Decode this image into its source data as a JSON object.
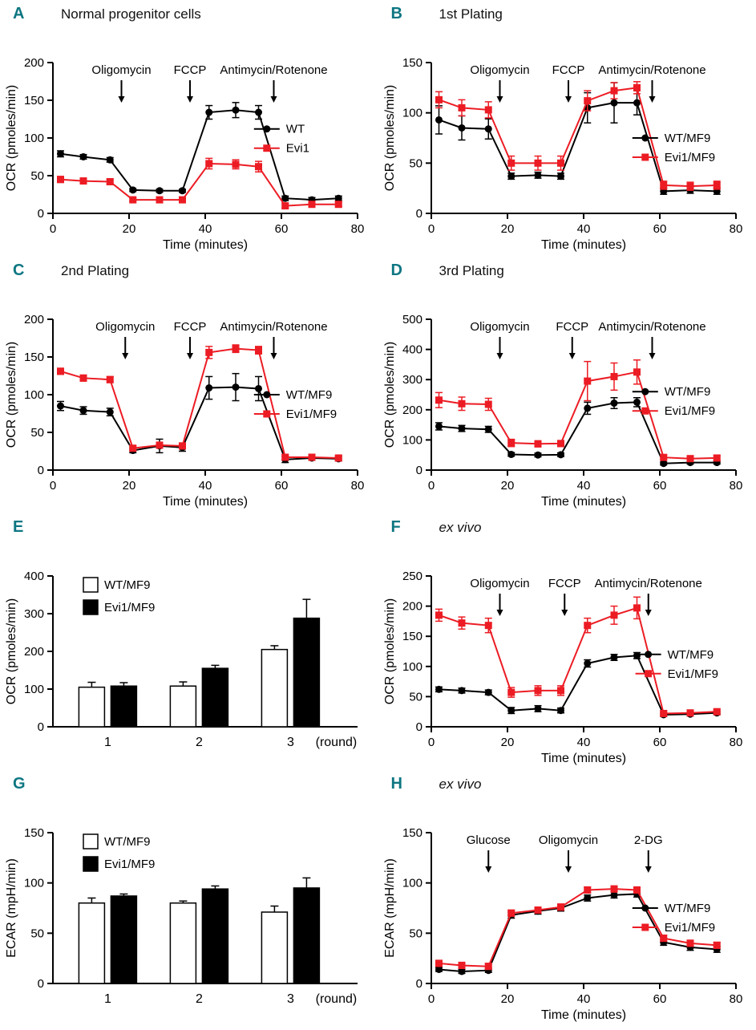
{
  "figure_meta": {
    "panel_letter_color": "#0d7682",
    "series_black_color": "#000000",
    "series_red_color": "#ec1c24"
  },
  "chart_data": [
    {
      "type": "line",
      "panel": "A",
      "title": "Normal progenitor cells",
      "title_class": "title",
      "xlabel": "Time (minutes)",
      "ylabel": "OCR (pmoles/min)",
      "xlim": [
        0,
        80
      ],
      "ylim": [
        0,
        200
      ],
      "xticks": [
        0,
        20,
        40,
        60,
        80
      ],
      "yticks": [
        0,
        50,
        100,
        150,
        200
      ],
      "annotations": [
        {
          "label": "Oligomycin",
          "x": 18
        },
        {
          "label": "FCCP",
          "x": 36
        },
        {
          "label": "Antimycin/Rotenone",
          "x": 58
        }
      ],
      "x": [
        2,
        8,
        15,
        21,
        28,
        34,
        41,
        48,
        54,
        61,
        68,
        75
      ],
      "legend_pos": {
        "fx": 0.66,
        "fy": 0.44
      },
      "series": [
        {
          "name": "WT",
          "color": "#000000",
          "marker": "circle",
          "values": [
            79,
            75,
            71,
            31,
            30,
            30,
            134,
            137,
            134,
            20,
            18,
            20
          ],
          "errors": [
            4,
            3,
            3,
            2,
            2,
            2,
            9,
            10,
            9,
            3,
            3,
            3
          ]
        },
        {
          "name": "Evi1",
          "color": "#ec1c24",
          "marker": "square",
          "values": [
            45,
            43,
            42,
            18,
            18,
            18,
            66,
            65,
            62,
            10,
            12,
            12
          ],
          "errors": [
            4,
            3,
            3,
            2,
            2,
            2,
            7,
            6,
            7,
            3,
            3,
            3
          ]
        }
      ]
    },
    {
      "type": "line",
      "panel": "B",
      "title": "1st Plating",
      "title_class": "title",
      "xlabel": "Time (minutes)",
      "ylabel": "OCR (pmoles/min)",
      "xlim": [
        0,
        80
      ],
      "ylim": [
        0,
        150
      ],
      "xticks": [
        0,
        20,
        40,
        60,
        80
      ],
      "yticks": [
        0,
        50,
        100,
        150
      ],
      "annotations": [
        {
          "label": "Oligomycin",
          "x": 18
        },
        {
          "label": "FCCP",
          "x": 36
        },
        {
          "label": "Antimycin/Rotenone",
          "x": 58
        }
      ],
      "x": [
        2,
        8,
        15,
        21,
        28,
        34,
        41,
        48,
        54,
        61,
        68,
        75
      ],
      "legend_pos": {
        "fx": 0.66,
        "fy": 0.5
      },
      "series": [
        {
          "name": "WT/MF9",
          "color": "#000000",
          "marker": "circle",
          "values": [
            93,
            85,
            84,
            37,
            38,
            37,
            105,
            110,
            110,
            22,
            23,
            22
          ],
          "errors": [
            14,
            12,
            10,
            3,
            3,
            3,
            15,
            20,
            12,
            3,
            3,
            3
          ]
        },
        {
          "name": "Evi1/MF9",
          "color": "#ec1c24",
          "marker": "square",
          "values": [
            113,
            105,
            103,
            50,
            50,
            50,
            112,
            122,
            125,
            28,
            27,
            28
          ],
          "errors": [
            8,
            8,
            8,
            7,
            7,
            7,
            10,
            8,
            6,
            4,
            4,
            4
          ]
        }
      ]
    },
    {
      "type": "line",
      "panel": "C",
      "title": "2nd Plating",
      "title_class": "title",
      "xlabel": "Time (minutes)",
      "ylabel": "OCR (pmoles/min)",
      "xlim": [
        0,
        80
      ],
      "ylim": [
        0,
        200
      ],
      "xticks": [
        0,
        20,
        40,
        60,
        80
      ],
      "yticks": [
        0,
        50,
        100,
        150,
        200
      ],
      "annotations": [
        {
          "label": "Oligomycin",
          "x": 19
        },
        {
          "label": "FCCP",
          "x": 36
        },
        {
          "label": "Antimycin/Rotenone",
          "x": 58
        }
      ],
      "x": [
        2,
        8,
        15,
        21,
        28,
        34,
        41,
        48,
        54,
        61,
        68,
        75
      ],
      "legend_pos": {
        "fx": 0.66,
        "fy": 0.5
      },
      "series": [
        {
          "name": "WT/MF9",
          "color": "#000000",
          "marker": "circle",
          "values": [
            85,
            79,
            77,
            26,
            32,
            30,
            109,
            110,
            108,
            14,
            16,
            15
          ],
          "errors": [
            6,
            5,
            5,
            3,
            9,
            5,
            15,
            18,
            16,
            4,
            3,
            3
          ]
        },
        {
          "name": "Evi1/MF9",
          "color": "#ec1c24",
          "marker": "square",
          "values": [
            131,
            122,
            120,
            29,
            33,
            32,
            156,
            161,
            159,
            17,
            17,
            16
          ],
          "errors": [
            4,
            4,
            4,
            3,
            4,
            4,
            8,
            5,
            5,
            3,
            3,
            3
          ]
        }
      ]
    },
    {
      "type": "line",
      "panel": "D",
      "title": "3rd Plating",
      "title_class": "title",
      "xlabel": "Time (minutes)",
      "ylabel": "OCR (pmoles/min)",
      "xlim": [
        0,
        80
      ],
      "ylim": [
        0,
        500
      ],
      "xticks": [
        0,
        20,
        40,
        60,
        80
      ],
      "yticks": [
        0,
        100,
        200,
        300,
        400,
        500
      ],
      "annotations": [
        {
          "label": "Oligomycin",
          "x": 18
        },
        {
          "label": "FCCP",
          "x": 37
        },
        {
          "label": "Antimycin/Rotenone",
          "x": 58
        }
      ],
      "x": [
        2,
        8,
        15,
        21,
        28,
        34,
        41,
        48,
        54,
        61,
        68,
        75
      ],
      "legend_pos": {
        "fx": 0.66,
        "fy": 0.48
      },
      "series": [
        {
          "name": "WT/MF9",
          "color": "#000000",
          "marker": "circle",
          "values": [
            145,
            138,
            135,
            52,
            50,
            51,
            205,
            222,
            225,
            22,
            25,
            25
          ],
          "errors": [
            12,
            10,
            10,
            6,
            6,
            6,
            20,
            18,
            15,
            5,
            5,
            5
          ]
        },
        {
          "name": "Evi1/MF9",
          "color": "#ec1c24",
          "marker": "square",
          "values": [
            232,
            220,
            218,
            90,
            87,
            88,
            295,
            310,
            325,
            42,
            38,
            40
          ],
          "errors": [
            25,
            22,
            20,
            12,
            10,
            10,
            65,
            45,
            40,
            8,
            8,
            8
          ]
        }
      ]
    },
    {
      "type": "bar",
      "panel": "E",
      "title": "",
      "title_class": "title",
      "ylabel": "OCR (pmoles/min)",
      "ylim": [
        0,
        400
      ],
      "yticks": [
        0,
        100,
        200,
        300,
        400
      ],
      "categories": [
        "1",
        "2",
        "3"
      ],
      "category_suffix": "(round)",
      "group_fractions": [
        0.18,
        0.48,
        0.78
      ],
      "series": [
        {
          "name": "WT/MF9",
          "fill": "#ffffff",
          "values": [
            105,
            108,
            205
          ],
          "errors": [
            13,
            11,
            10
          ]
        },
        {
          "name": "Evi1/MF9",
          "fill": "#000000",
          "values": [
            108,
            155,
            288
          ],
          "errors": [
            9,
            8,
            50
          ]
        }
      ]
    },
    {
      "type": "line",
      "panel": "F",
      "title": "ex vivo",
      "title_class": "title italic",
      "xlabel": "Time (minutes)",
      "ylabel": "OCR (pmoles/min)",
      "xlim": [
        0,
        80
      ],
      "ylim": [
        0,
        250
      ],
      "xticks": [
        0,
        20,
        40,
        60,
        80
      ],
      "yticks": [
        0,
        50,
        100,
        150,
        200,
        250
      ],
      "annotations": [
        {
          "label": "Oligomycin",
          "x": 18
        },
        {
          "label": "FCCP",
          "x": 35
        },
        {
          "label": "Antimycin/Rotenone",
          "x": 57
        }
      ],
      "x": [
        2,
        8,
        15,
        21,
        28,
        34,
        41,
        48,
        54,
        61,
        68,
        75
      ],
      "legend_pos": {
        "fx": 0.67,
        "fy": 0.52
      },
      "series": [
        {
          "name": "WT/MF9",
          "color": "#000000",
          "marker": "circle",
          "values": [
            62,
            60,
            57,
            27,
            30,
            27,
            105,
            115,
            118,
            20,
            21,
            23
          ],
          "errors": [
            4,
            4,
            4,
            5,
            5,
            4,
            6,
            5,
            5,
            3,
            3,
            3
          ]
        },
        {
          "name": "Evi1/MF9",
          "color": "#ec1c24",
          "marker": "square",
          "values": [
            185,
            172,
            168,
            57,
            60,
            60,
            168,
            185,
            197,
            22,
            23,
            25
          ],
          "errors": [
            10,
            10,
            12,
            8,
            8,
            8,
            12,
            15,
            18,
            4,
            4,
            4
          ]
        }
      ]
    },
    {
      "type": "bar",
      "panel": "G",
      "title": "",
      "title_class": "title",
      "ylabel": "ECAR (mpH/min)",
      "ylim": [
        0,
        150
      ],
      "yticks": [
        0,
        50,
        100,
        150
      ],
      "categories": [
        "1",
        "2",
        "3"
      ],
      "category_suffix": "(round)",
      "group_fractions": [
        0.18,
        0.48,
        0.78
      ],
      "series": [
        {
          "name": "WT/MF9",
          "fill": "#ffffff",
          "values": [
            80,
            80,
            71
          ],
          "errors": [
            5,
            2,
            6
          ]
        },
        {
          "name": "Evi1/MF9",
          "fill": "#000000",
          "values": [
            87,
            94,
            95
          ],
          "errors": [
            2,
            3,
            10
          ]
        }
      ]
    },
    {
      "type": "line",
      "panel": "H",
      "title": "ex vivo",
      "title_class": "title italic",
      "xlabel": "Time (minutes)",
      "ylabel": "ECAR (mpH/min)",
      "xlim": [
        0,
        80
      ],
      "ylim": [
        0,
        150
      ],
      "xticks": [
        0,
        20,
        40,
        60,
        80
      ],
      "yticks": [
        0,
        50,
        100,
        150
      ],
      "annotations": [
        {
          "label": "Glucose",
          "x": 15
        },
        {
          "label": "Oligomycin",
          "x": 36
        },
        {
          "label": "2-DG",
          "x": 57
        }
      ],
      "x": [
        2,
        8,
        15,
        21,
        28,
        34,
        41,
        48,
        54,
        61,
        68,
        75
      ],
      "legend_pos": {
        "fx": 0.66,
        "fy": 0.5
      },
      "series": [
        {
          "name": "WT/MF9",
          "color": "#000000",
          "marker": "circle",
          "values": [
            14,
            12,
            13,
            68,
            72,
            75,
            85,
            88,
            89,
            41,
            36,
            34
          ],
          "errors": [
            2,
            2,
            2,
            3,
            3,
            3,
            3,
            3,
            3,
            3,
            3,
            3
          ]
        },
        {
          "name": "Evi1/MF9",
          "color": "#ec1c24",
          "marker": "square",
          "values": [
            20,
            18,
            17,
            70,
            73,
            76,
            93,
            94,
            93,
            45,
            40,
            38
          ],
          "errors": [
            3,
            3,
            3,
            3,
            3,
            3,
            3,
            3,
            3,
            3,
            3,
            3
          ]
        }
      ]
    }
  ]
}
